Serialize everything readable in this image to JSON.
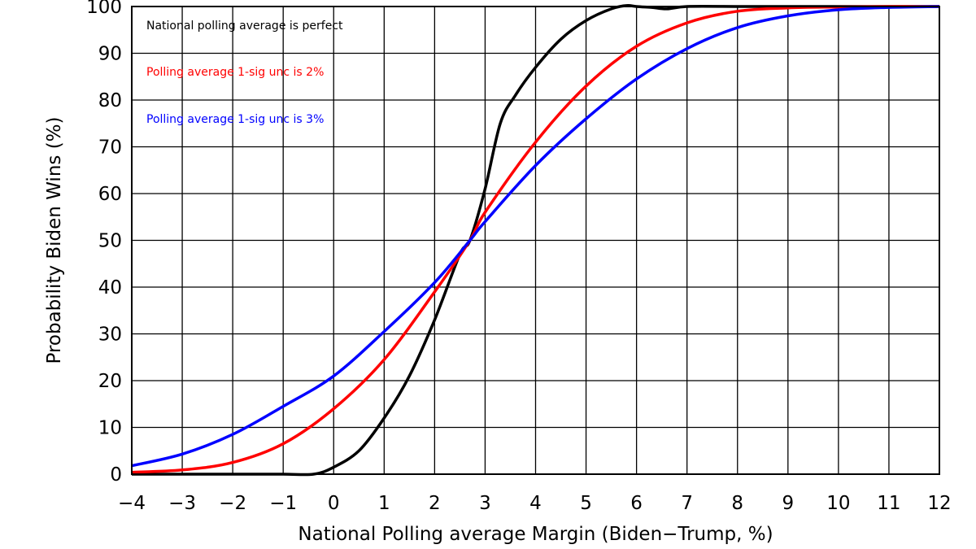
{
  "chart_data": {
    "type": "line",
    "title": "",
    "xlabel": "National Polling average Margin (Biden−Trump, %)",
    "ylabel": "Probability Biden Wins (%)",
    "xlim": [
      -4,
      12
    ],
    "ylim": [
      0,
      100
    ],
    "grid": true,
    "legend_placement": "top-left",
    "x_ticks": [
      -4,
      -3,
      -2,
      -1,
      0,
      1,
      2,
      3,
      4,
      5,
      6,
      7,
      8,
      9,
      10,
      11,
      12
    ],
    "x_tick_labels": [
      "−4",
      "−3",
      "−2",
      "−1",
      "0",
      "1",
      "2",
      "3",
      "4",
      "5",
      "6",
      "7",
      "8",
      "9",
      "10",
      "11",
      "12"
    ],
    "y_ticks": [
      0,
      10,
      20,
      30,
      40,
      50,
      60,
      70,
      80,
      90,
      100
    ],
    "y_tick_labels": [
      "0",
      "10",
      "20",
      "30",
      "40",
      "50",
      "60",
      "70",
      "80",
      "90",
      "100"
    ],
    "series": [
      {
        "name": "National polling average is perfect",
        "color": "#000000",
        "x": [
          -4,
          -3,
          -2,
          -1,
          -0.4,
          0,
          0.5,
          1,
          1.5,
          2,
          2.5,
          2.7,
          3,
          3.3,
          3.6,
          4,
          4.5,
          5,
          5.5,
          5.8,
          6,
          6.3,
          6.6,
          7,
          8,
          9,
          10,
          11,
          12
        ],
        "y": [
          0,
          0,
          0,
          0,
          0,
          1.5,
          5,
          12,
          21,
          33,
          47,
          50,
          61,
          75,
          81,
          87,
          93,
          97,
          99.5,
          100.2,
          100,
          99.8,
          99.5,
          100,
          100,
          100,
          100,
          100,
          100
        ]
      },
      {
        "name": "Polling average 1-sig unc is 2%",
        "color": "#ff0000",
        "x": [
          -4,
          -3,
          -2,
          -1,
          0,
          1,
          2,
          2.7,
          3,
          4,
          5,
          6,
          7,
          8,
          9,
          10,
          11,
          12
        ],
        "y": [
          0.4,
          0.9,
          2.5,
          6.5,
          14,
          24.5,
          39,
          50,
          56,
          71,
          83,
          91.5,
          96.5,
          99,
          99.7,
          99.9,
          100,
          100
        ]
      },
      {
        "name": "Polling average 1-sig unc is 3%",
        "color": "#0000ff",
        "x": [
          -4,
          -3,
          -2,
          -1,
          0,
          1,
          2,
          2.7,
          3,
          4,
          5,
          6,
          7,
          8,
          9,
          10,
          11,
          12
        ],
        "y": [
          1.8,
          4.3,
          8.5,
          14.5,
          21,
          30.5,
          41,
          50,
          54,
          66,
          76,
          84.5,
          91,
          95.5,
          98,
          99.3,
          99.8,
          100
        ]
      }
    ]
  }
}
